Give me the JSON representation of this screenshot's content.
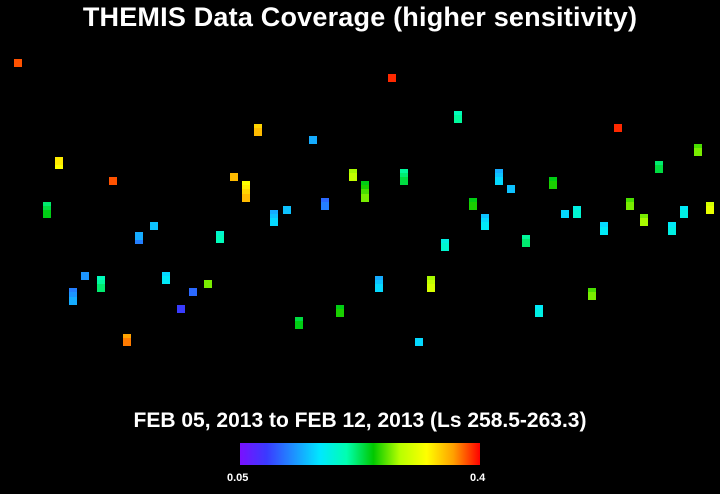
{
  "title": "THEMIS Data Coverage (higher sensitivity)",
  "date_range": "FEB 05, 2013 to FEB 12, 2013 (Ls 258.5-263.3)",
  "colorbar": {
    "min_label": "0.05",
    "max_label": "0.4",
    "colors": [
      "#7a10ff",
      "#3a3aff",
      "#1e90ff",
      "#00e8ff",
      "#00ffb0",
      "#00c800",
      "#b8ff00",
      "#ffff00",
      "#ffa000",
      "#ff0000"
    ]
  },
  "chart_data": {
    "type": "heatmap",
    "title": "THEMIS Data Coverage (higher sensitivity)",
    "value_range": [
      0.05,
      0.4
    ],
    "observations": [
      {
        "lon": 9,
        "lat": 67.2,
        "value": 0.38
      },
      {
        "lon": 23.4,
        "lat": 15.0,
        "value": 0.22
      },
      {
        "lon": 23.4,
        "lat": 13.5,
        "value": 0.23
      },
      {
        "lon": 23.4,
        "lat": 12.0,
        "value": 0.24
      },
      {
        "lon": 29.4,
        "lat": 30.0,
        "value": 0.32
      },
      {
        "lon": 29.4,
        "lat": 31.5,
        "value": 0.33
      },
      {
        "lon": 36.6,
        "lat": -16.5,
        "value": 0.12
      },
      {
        "lon": 36.6,
        "lat": -18.0,
        "value": 0.13
      },
      {
        "lon": 36.6,
        "lat": -19.5,
        "value": 0.14
      },
      {
        "lon": 42.6,
        "lat": -10.5,
        "value": 0.13
      },
      {
        "lon": 50.4,
        "lat": -12.0,
        "value": 0.2
      },
      {
        "lon": 50.4,
        "lat": -13.5,
        "value": 0.21
      },
      {
        "lon": 50.4,
        "lat": -15.0,
        "value": 0.22
      },
      {
        "lon": 56.4,
        "lat": 24.0,
        "value": 0.38
      },
      {
        "lon": 63.6,
        "lat": -33.0,
        "value": 0.36
      },
      {
        "lon": 63.6,
        "lat": -34.5,
        "value": 0.37
      },
      {
        "lon": 69.6,
        "lat": 2.5,
        "value": 0.12
      },
      {
        "lon": 69.6,
        "lat": 4.0,
        "value": 0.14
      },
      {
        "lon": 76.8,
        "lat": 7.5,
        "value": 0.15
      },
      {
        "lon": 82.8,
        "lat": -10.5,
        "value": 0.16
      },
      {
        "lon": 82.8,
        "lat": -12.0,
        "value": 0.17
      },
      {
        "lon": 90.6,
        "lat": -22.5,
        "value": 0.09
      },
      {
        "lon": 96.6,
        "lat": -16.5,
        "value": 0.11
      },
      {
        "lon": 103.8,
        "lat": -13.5,
        "value": 0.27
      },
      {
        "lon": 109.8,
        "lat": 4.5,
        "value": 0.19
      },
      {
        "lon": 109.8,
        "lat": 3.0,
        "value": 0.2
      },
      {
        "lon": 117,
        "lat": 25.5,
        "value": 0.35
      },
      {
        "lon": 123,
        "lat": 22.5,
        "value": 0.32
      },
      {
        "lon": 123,
        "lat": 21.0,
        "value": 0.33
      },
      {
        "lon": 123,
        "lat": 19.5,
        "value": 0.34
      },
      {
        "lon": 123,
        "lat": 18.0,
        "value": 0.35
      },
      {
        "lon": 129,
        "lat": 43.5,
        "value": 0.34
      },
      {
        "lon": 129,
        "lat": 42.0,
        "value": 0.35
      },
      {
        "lon": 136.8,
        "lat": 12.0,
        "value": 0.14
      },
      {
        "lon": 136.8,
        "lat": 10.5,
        "value": 0.15
      },
      {
        "lon": 136.8,
        "lat": 9.0,
        "value": 0.16
      },
      {
        "lon": 143.4,
        "lat": 13.5,
        "value": 0.15
      },
      {
        "lon": 149.4,
        "lat": -27.0,
        "value": 0.23
      },
      {
        "lon": 149.4,
        "lat": -28.5,
        "value": 0.24
      },
      {
        "lon": 156.6,
        "lat": 39.0,
        "value": 0.14
      },
      {
        "lon": 162.6,
        "lat": 16.5,
        "value": 0.11
      },
      {
        "lon": 162.6,
        "lat": 15.0,
        "value": 0.12
      },
      {
        "lon": 169.8,
        "lat": -22.5,
        "value": 0.24
      },
      {
        "lon": 169.8,
        "lat": -24.0,
        "value": 0.25
      },
      {
        "lon": 176.4,
        "lat": 27.0,
        "value": 0.28
      },
      {
        "lon": 176.4,
        "lat": 25.5,
        "value": 0.29
      },
      {
        "lon": 182.4,
        "lat": 22.5,
        "value": 0.24
      },
      {
        "lon": 182.4,
        "lat": 21.0,
        "value": 0.25
      },
      {
        "lon": 182.4,
        "lat": 19.5,
        "value": 0.26
      },
      {
        "lon": 182.4,
        "lat": 18.0,
        "value": 0.27
      },
      {
        "lon": 189.6,
        "lat": -12.0,
        "value": 0.14
      },
      {
        "lon": 189.6,
        "lat": -13.5,
        "value": 0.15
      },
      {
        "lon": 189.6,
        "lat": -15.0,
        "value": 0.16
      },
      {
        "lon": 196.2,
        "lat": 61.5,
        "value": 0.39
      },
      {
        "lon": 202.2,
        "lat": 27.0,
        "value": 0.21
      },
      {
        "lon": 202.2,
        "lat": 25.5,
        "value": 0.22
      },
      {
        "lon": 202.2,
        "lat": 24.0,
        "value": 0.23
      },
      {
        "lon": 209.4,
        "lat": -34.5,
        "value": 0.16
      },
      {
        "lon": 215.4,
        "lat": -12.0,
        "value": 0.28
      },
      {
        "lon": 215.4,
        "lat": -13.5,
        "value": 0.29
      },
      {
        "lon": 215.4,
        "lat": -15.0,
        "value": 0.3
      },
      {
        "lon": 222.6,
        "lat": 1.5,
        "value": 0.18
      },
      {
        "lon": 222.6,
        "lat": 0.0,
        "value": 0.19
      },
      {
        "lon": 229.2,
        "lat": 48.0,
        "value": 0.2
      },
      {
        "lon": 229.2,
        "lat": 46.5,
        "value": 0.21
      },
      {
        "lon": 236.4,
        "lat": 16.5,
        "value": 0.24
      },
      {
        "lon": 236.4,
        "lat": 15.0,
        "value": 0.25
      },
      {
        "lon": 242.4,
        "lat": 10.5,
        "value": 0.15
      },
      {
        "lon": 242.4,
        "lat": 9.0,
        "value": 0.16
      },
      {
        "lon": 242.4,
        "lat": 7.5,
        "value": 0.17
      },
      {
        "lon": 249.6,
        "lat": 27.0,
        "value": 0.14
      },
      {
        "lon": 249.6,
        "lat": 25.5,
        "value": 0.15
      },
      {
        "lon": 249.6,
        "lat": 24.0,
        "value": 0.16
      },
      {
        "lon": 255.6,
        "lat": 21.0,
        "value": 0.15
      },
      {
        "lon": 262.8,
        "lat": 3.0,
        "value": 0.21
      },
      {
        "lon": 262.8,
        "lat": 1.5,
        "value": 0.22
      },
      {
        "lon": 269.4,
        "lat": -22.5,
        "value": 0.17
      },
      {
        "lon": 269.4,
        "lat": -24.0,
        "value": 0.18
      },
      {
        "lon": 276.6,
        "lat": 24.0,
        "value": 0.24
      },
      {
        "lon": 276.6,
        "lat": 22.5,
        "value": 0.25
      },
      {
        "lon": 282.6,
        "lat": 12.0,
        "value": 0.16
      },
      {
        "lon": 288.6,
        "lat": 13.5,
        "value": 0.18
      },
      {
        "lon": 288.6,
        "lat": 12.0,
        "value": 0.19
      },
      {
        "lon": 295.8,
        "lat": -16.5,
        "value": 0.26
      },
      {
        "lon": 295.8,
        "lat": -18.0,
        "value": 0.27
      },
      {
        "lon": 301.8,
        "lat": 7.5,
        "value": 0.16
      },
      {
        "lon": 301.8,
        "lat": 6.0,
        "value": 0.17
      },
      {
        "lon": 309,
        "lat": 43.5,
        "value": 0.39
      },
      {
        "lon": 315,
        "lat": 16.5,
        "value": 0.26
      },
      {
        "lon": 315,
        "lat": 15.0,
        "value": 0.27
      },
      {
        "lon": 322.2,
        "lat": 10.5,
        "value": 0.27
      },
      {
        "lon": 322.2,
        "lat": 9.0,
        "value": 0.28
      },
      {
        "lon": 329.4,
        "lat": 30.0,
        "value": 0.22
      },
      {
        "lon": 329.4,
        "lat": 28.5,
        "value": 0.23
      },
      {
        "lon": 336,
        "lat": 7.5,
        "value": 0.17
      },
      {
        "lon": 336,
        "lat": 6.0,
        "value": 0.18
      },
      {
        "lon": 342,
        "lat": 13.5,
        "value": 0.17
      },
      {
        "lon": 342,
        "lat": 12.0,
        "value": 0.18
      },
      {
        "lon": 349.2,
        "lat": 36.0,
        "value": 0.26
      },
      {
        "lon": 349.2,
        "lat": 34.5,
        "value": 0.27
      },
      {
        "lon": 355.2,
        "lat": 15.0,
        "value": 0.3
      },
      {
        "lon": 355.2,
        "lat": 13.5,
        "value": 0.31
      }
    ]
  }
}
